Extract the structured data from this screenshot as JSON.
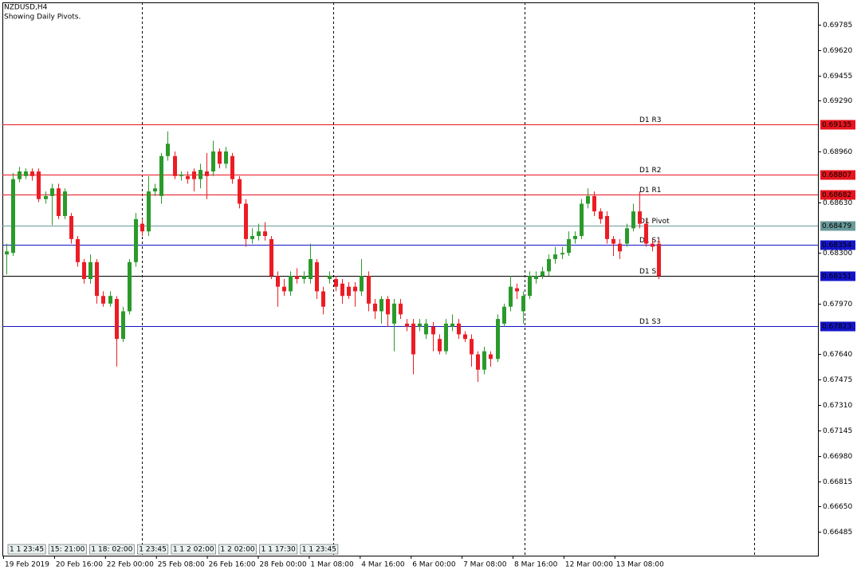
{
  "chart_data": {
    "type": "candlestick",
    "title": "NZDUSD,H4",
    "subtitle": "Showing Daily Pivots.",
    "up_color": "#2a9a2a",
    "down_color": "#ec1c24",
    "ylim": [
      0.6633,
      0.6993
    ],
    "yticks": [
      0.69785,
      {
        "value": 0.6962,
        "label": "0.69620"
      },
      0.69455,
      {
        "value": 0.6929,
        "label": "0.69290"
      },
      {
        "value": 0.6896,
        "label": "0.68960"
      },
      {
        "value": 0.6863,
        "label": "0.68630"
      },
      {
        "value": 0.683,
        "label": "0.68300"
      },
      {
        "value": 0.6797,
        "label": "0.67970"
      },
      {
        "value": 0.6764,
        "label": "0.67640"
      },
      0.67475,
      {
        "value": 0.6731,
        "label": "0.67310"
      },
      0.67145,
      {
        "value": 0.6698,
        "label": "0.66980"
      },
      0.66815,
      {
        "value": 0.6665,
        "label": "0.66650"
      },
      0.66485
    ],
    "x_labels": [
      "19 Feb 2019",
      "20 Feb 16:00",
      "22 Feb 00:00",
      "25 Feb 08:00",
      "26 Feb 16:00",
      "28 Feb 00:00",
      "1 Mar 08:00",
      "4 Mar 16:00",
      "6 Mar 00:00",
      "7 Mar 08:00",
      "8 Mar 16:00",
      "12 Mar 00:00",
      "13 Mar 08:00"
    ],
    "levels": [
      {
        "name": "D1 R3",
        "value": 0.69135,
        "color": "#e8141e"
      },
      {
        "name": "D1 R2",
        "value": 0.68807,
        "color": "#e8141e"
      },
      {
        "name": "D1 R1",
        "value": 0.68682,
        "color": "#e8141e"
      },
      {
        "name": "D1 Pivot",
        "value": 0.68479,
        "color": "#6a9a9a"
      },
      {
        "name": "D1 S1",
        "value": 0.68354,
        "color": "#1414c8"
      },
      {
        "name": "D1 S2",
        "value": 0.68151,
        "color": "#1414c8"
      },
      {
        "name": "D1 S3",
        "value": 0.67823,
        "color": "#1414c8"
      }
    ],
    "last_price": 0.6815,
    "tabs": [
      "1 1 23:45",
      "15: 21:00",
      "1 18: 02:00",
      "1 23:45",
      "1 1 2 02:00",
      "1 2 02:00",
      "1 1 17:30",
      "1 1 23:45"
    ],
    "ohlc": [
      [
        0.6829,
        0.6836,
        0.6816,
        0.6831
      ],
      [
        0.683,
        0.6882,
        0.6828,
        0.6878
      ],
      [
        0.6878,
        0.6886,
        0.6876,
        0.6883
      ],
      [
        0.688,
        0.6885,
        0.6878,
        0.6883
      ],
      [
        0.6883,
        0.6885,
        0.6877,
        0.688
      ],
      [
        0.6883,
        0.6885,
        0.6863,
        0.6865
      ],
      [
        0.6865,
        0.687,
        0.6862,
        0.6867
      ],
      [
        0.6867,
        0.6875,
        0.6848,
        0.6872
      ],
      [
        0.6872,
        0.6875,
        0.6852,
        0.6854
      ],
      [
        0.6854,
        0.6872,
        0.6852,
        0.687
      ],
      [
        0.6854,
        0.6856,
        0.6836,
        0.6839
      ],
      [
        0.6839,
        0.6841,
        0.6821,
        0.6824
      ],
      [
        0.6824,
        0.6826,
        0.681,
        0.6813
      ],
      [
        0.6813,
        0.6829,
        0.681,
        0.6824
      ],
      [
        0.6824,
        0.6826,
        0.6797,
        0.6802
      ],
      [
        0.6802,
        0.6805,
        0.6795,
        0.6797
      ],
      [
        0.6797,
        0.6805,
        0.6795,
        0.6802
      ],
      [
        0.68,
        0.6802,
        0.6756,
        0.6774
      ],
      [
        0.6774,
        0.6795,
        0.6772,
        0.6792
      ],
      [
        0.6792,
        0.6826,
        0.679,
        0.6824
      ],
      [
        0.6824,
        0.6856,
        0.6821,
        0.6852
      ],
      [
        0.6849,
        0.6852,
        0.6841,
        0.6844
      ],
      [
        0.6844,
        0.688,
        0.6841,
        0.687
      ],
      [
        0.687,
        0.6875,
        0.6867,
        0.6872
      ],
      [
        0.6867,
        0.6895,
        0.6862,
        0.6893
      ],
      [
        0.6893,
        0.6909,
        0.689,
        0.6901
      ],
      [
        0.6893,
        0.6896,
        0.6878,
        0.688
      ],
      [
        0.688,
        0.6883,
        0.6877,
        0.6881
      ],
      [
        0.688,
        0.6883,
        0.6875,
        0.6878
      ],
      [
        0.6883,
        0.6885,
        0.687,
        0.6878
      ],
      [
        0.6878,
        0.6888,
        0.6872,
        0.6884
      ],
      [
        0.6883,
        0.6895,
        0.6865,
        0.688
      ],
      [
        0.6883,
        0.6903,
        0.688,
        0.6896
      ],
      [
        0.6896,
        0.6898,
        0.6885,
        0.6888
      ],
      [
        0.6888,
        0.6899,
        0.6885,
        0.6896
      ],
      [
        0.6893,
        0.6895,
        0.6875,
        0.6878
      ],
      [
        0.6878,
        0.688,
        0.6859,
        0.6862
      ],
      [
        0.6862,
        0.6865,
        0.6834,
        0.6839
      ],
      [
        0.6839,
        0.6846,
        0.6836,
        0.6841
      ],
      [
        0.6841,
        0.6849,
        0.6838,
        0.6844
      ],
      [
        0.6844,
        0.685,
        0.6838,
        0.6841
      ],
      [
        0.6839,
        0.6841,
        0.6813,
        0.6815
      ],
      [
        0.6815,
        0.6818,
        0.6795,
        0.6808
      ],
      [
        0.6808,
        0.6813,
        0.6802,
        0.6805
      ],
      [
        0.6805,
        0.6818,
        0.6802,
        0.6815
      ],
      [
        0.6815,
        0.682,
        0.681,
        0.6813
      ],
      [
        0.6813,
        0.6818,
        0.681,
        0.6815
      ],
      [
        0.6813,
        0.6836,
        0.681,
        0.6826
      ],
      [
        0.6824,
        0.6826,
        0.68,
        0.6805
      ],
      [
        0.6805,
        0.6808,
        0.679,
        0.6795
      ],
      [
        0.6813,
        0.6818,
        0.681,
        0.6815
      ],
      [
        0.6813,
        0.6815,
        0.6805,
        0.6808
      ],
      [
        0.681,
        0.6813,
        0.6797,
        0.6802
      ],
      [
        0.6808,
        0.6811,
        0.68,
        0.6802
      ],
      [
        0.6808,
        0.6811,
        0.6795,
        0.6805
      ],
      [
        0.6805,
        0.6826,
        0.6802,
        0.6815
      ],
      [
        0.6815,
        0.6818,
        0.6792,
        0.6797
      ],
      [
        0.6797,
        0.68,
        0.6787,
        0.6792
      ],
      [
        0.6792,
        0.6802,
        0.6784,
        0.68
      ],
      [
        0.68,
        0.6802,
        0.6782,
        0.679
      ],
      [
        0.6784,
        0.68,
        0.6766,
        0.6797
      ],
      [
        0.6797,
        0.68,
        0.6787,
        0.679
      ],
      [
        0.6784,
        0.6787,
        0.6779,
        0.6782
      ],
      [
        0.6784,
        0.6787,
        0.6751,
        0.6764
      ],
      [
        0.6782,
        0.6787,
        0.6779,
        0.6784
      ],
      [
        0.6777,
        0.6787,
        0.6774,
        0.6784
      ],
      [
        0.6782,
        0.6785,
        0.6766,
        0.6777
      ],
      [
        0.6774,
        0.6777,
        0.6764,
        0.6766
      ],
      [
        0.6766,
        0.6787,
        0.6764,
        0.6784
      ],
      [
        0.6782,
        0.679,
        0.6779,
        0.6784
      ],
      [
        0.6784,
        0.6787,
        0.6774,
        0.6777
      ],
      [
        0.6777,
        0.6779,
        0.6772,
        0.6774
      ],
      [
        0.6774,
        0.6777,
        0.6756,
        0.6764
      ],
      [
        0.6764,
        0.6766,
        0.6746,
        0.6754
      ],
      [
        0.6754,
        0.6769,
        0.6751,
        0.6766
      ],
      [
        0.6764,
        0.6766,
        0.6756,
        0.6761
      ],
      [
        0.6761,
        0.679,
        0.6759,
        0.6787
      ],
      [
        0.6784,
        0.6797,
        0.6782,
        0.6795
      ],
      [
        0.6795,
        0.6815,
        0.6792,
        0.6808
      ],
      [
        0.6807,
        0.681,
        0.68,
        0.6805
      ],
      [
        0.6792,
        0.6805,
        0.6784,
        0.6802
      ],
      [
        0.6802,
        0.6818,
        0.68,
        0.6815
      ],
      [
        0.6813,
        0.6818,
        0.681,
        0.6815
      ],
      [
        0.6815,
        0.6821,
        0.6813,
        0.6818
      ],
      [
        0.6818,
        0.6829,
        0.6815,
        0.6826
      ],
      [
        0.6826,
        0.6834,
        0.6823,
        0.6829
      ],
      [
        0.6829,
        0.6834,
        0.6826,
        0.683
      ],
      [
        0.683,
        0.6844,
        0.6828,
        0.6839
      ],
      [
        0.6839,
        0.6844,
        0.6836,
        0.6841
      ],
      [
        0.6841,
        0.6865,
        0.6839,
        0.6862
      ],
      [
        0.6862,
        0.6872,
        0.6859,
        0.6867
      ],
      [
        0.6867,
        0.687,
        0.6854,
        0.6857
      ],
      [
        0.6857,
        0.6859,
        0.6849,
        0.6852
      ],
      [
        0.6854,
        0.6857,
        0.6836,
        0.6839
      ],
      [
        0.6839,
        0.6841,
        0.6828,
        0.6836
      ],
      [
        0.6836,
        0.6839,
        0.6826,
        0.6831
      ],
      [
        0.6836,
        0.6849,
        0.6834,
        0.6846
      ],
      [
        0.6846,
        0.6862,
        0.6844,
        0.6857
      ],
      [
        0.6857,
        0.687,
        0.6846,
        0.6849
      ],
      [
        0.6849,
        0.6852,
        0.6834,
        0.6836
      ],
      [
        0.6836,
        0.6839,
        0.6831,
        0.6834
      ],
      [
        0.6836,
        0.6839,
        0.6813,
        0.6815
      ]
    ]
  }
}
